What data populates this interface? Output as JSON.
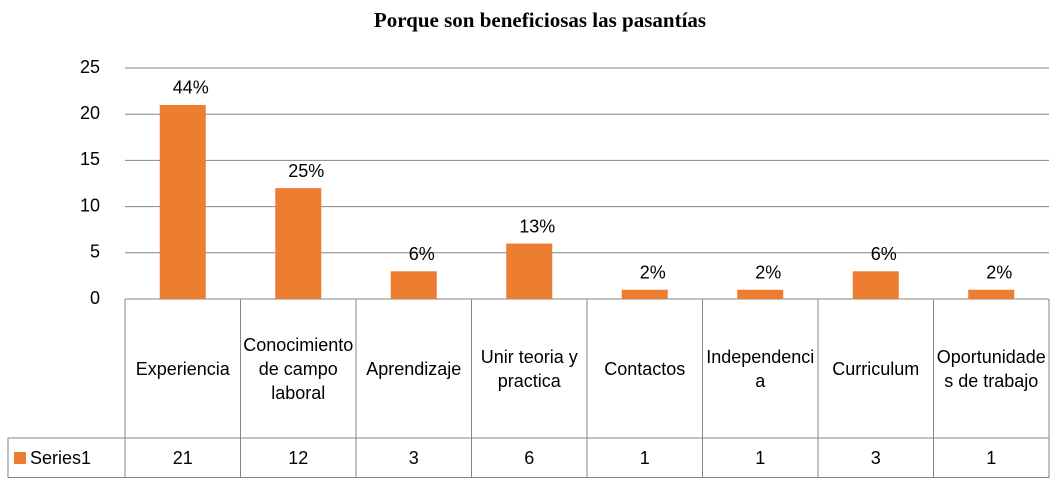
{
  "chart_data": {
    "type": "bar",
    "title": "Porque son beneficiosas las pasantías",
    "categories": [
      "Experiencia",
      "Conocimiento de campo laboral",
      "Aprendizaje",
      "Unir teoria y practica",
      "Contactos",
      "Independencia",
      "Curriculum",
      "Oportunidades de trabajo"
    ],
    "series": [
      {
        "name": "Series1",
        "color": "#ed7d31",
        "values": [
          21,
          12,
          3,
          6,
          1,
          1,
          3,
          1
        ],
        "value_labels": [
          "44%",
          "25%",
          "6%",
          "13%",
          "2%",
          "2%",
          "6%",
          "2%"
        ]
      }
    ],
    "ylim": [
      0,
      25
    ],
    "yticks": [
      0,
      5,
      10,
      15,
      20,
      25
    ],
    "grid": true,
    "data_table": true
  }
}
